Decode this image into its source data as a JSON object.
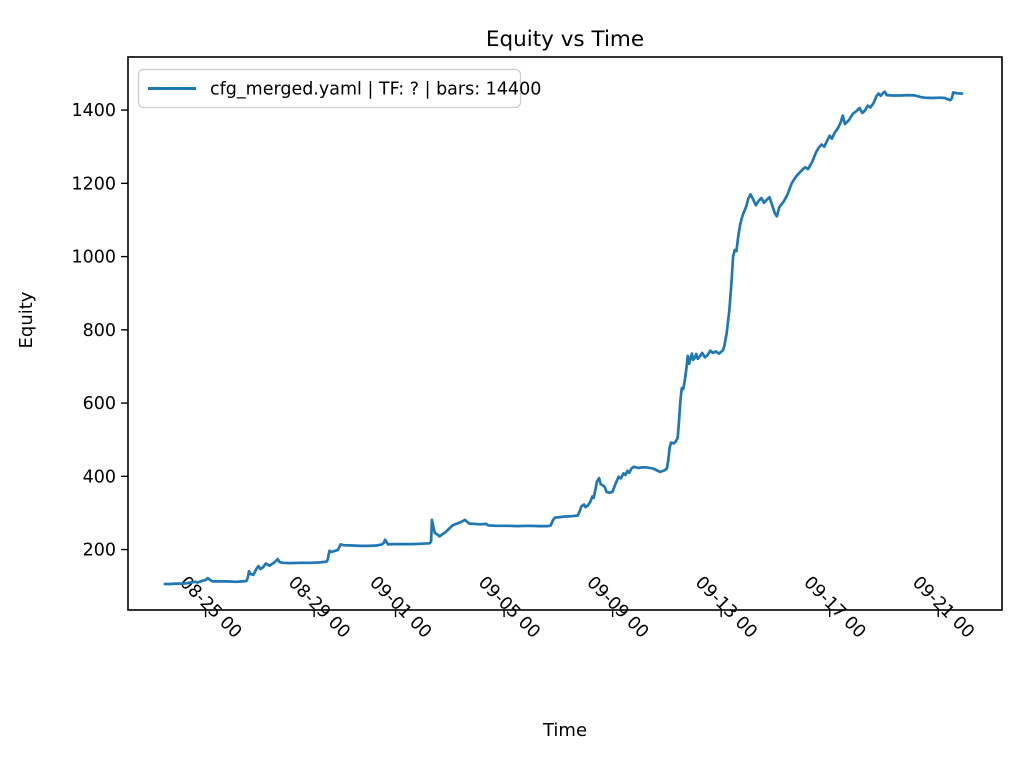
{
  "colors": {
    "line": "#1f77b4",
    "legend_border": "#cccccc",
    "axes": "#000000",
    "background": "#ffffff"
  },
  "chart_data": {
    "type": "line",
    "title": "Equity vs Time",
    "xlabel": "Time",
    "ylabel": "Equity",
    "grid": false,
    "legend": {
      "position": "upper left",
      "entries": [
        {
          "label": "cfg_merged.yaml | TF: ? | bars: 14400",
          "color": "#1f77b4"
        }
      ]
    },
    "y_ticks": [
      200,
      400,
      600,
      800,
      1000,
      1200,
      1400
    ],
    "ylim": [
      35,
      1545
    ],
    "x_range_days": [
      -0.86,
      31.35
    ],
    "x_axis_note": "days measured from 08-23 00:00",
    "x_ticks": [
      {
        "day": 2,
        "label": "08-25 00"
      },
      {
        "day": 6,
        "label": "08-29 00"
      },
      {
        "day": 9,
        "label": "09-01 00"
      },
      {
        "day": 13,
        "label": "09-05 00"
      },
      {
        "day": 17,
        "label": "09-09 00"
      },
      {
        "day": 21,
        "label": "09-13 00"
      },
      {
        "day": 25,
        "label": "09-17 00"
      },
      {
        "day": 29,
        "label": "09-21 00"
      }
    ],
    "series": [
      {
        "name": "cfg_merged.yaml | TF: ? | bars: 14400",
        "color": "#1f77b4",
        "points": [
          [
            0.5,
            106
          ],
          [
            0.7,
            106
          ],
          [
            0.9,
            107
          ],
          [
            1.1,
            107
          ],
          [
            1.3,
            108
          ],
          [
            1.5,
            111
          ],
          [
            1.62,
            112
          ],
          [
            1.7,
            110
          ],
          [
            1.85,
            114
          ],
          [
            2.0,
            117
          ],
          [
            2.08,
            122
          ],
          [
            2.15,
            118
          ],
          [
            2.25,
            113
          ],
          [
            2.5,
            113
          ],
          [
            2.8,
            113
          ],
          [
            3.1,
            112
          ],
          [
            3.35,
            113
          ],
          [
            3.5,
            114
          ],
          [
            3.55,
            122
          ],
          [
            3.6,
            141
          ],
          [
            3.66,
            133
          ],
          [
            3.76,
            131
          ],
          [
            3.88,
            148
          ],
          [
            3.95,
            155
          ],
          [
            4.02,
            147
          ],
          [
            4.12,
            152
          ],
          [
            4.22,
            162
          ],
          [
            4.35,
            156
          ],
          [
            4.5,
            163
          ],
          [
            4.6,
            170
          ],
          [
            4.66,
            174
          ],
          [
            4.72,
            166
          ],
          [
            4.85,
            164
          ],
          [
            5.1,
            163
          ],
          [
            5.5,
            164
          ],
          [
            5.9,
            164
          ],
          [
            6.2,
            165
          ],
          [
            6.45,
            167
          ],
          [
            6.5,
            172
          ],
          [
            6.53,
            185
          ],
          [
            6.57,
            197
          ],
          [
            6.62,
            193
          ],
          [
            6.75,
            196
          ],
          [
            6.88,
            199
          ],
          [
            6.93,
            207
          ],
          [
            6.97,
            214
          ],
          [
            7.1,
            212
          ],
          [
            7.4,
            211
          ],
          [
            7.7,
            210
          ],
          [
            8.0,
            210
          ],
          [
            8.3,
            211
          ],
          [
            8.5,
            214
          ],
          [
            8.57,
            219
          ],
          [
            8.61,
            227
          ],
          [
            8.66,
            222
          ],
          [
            8.72,
            214
          ],
          [
            8.9,
            215
          ],
          [
            9.2,
            215
          ],
          [
            9.6,
            215
          ],
          [
            10.0,
            216
          ],
          [
            10.25,
            217
          ],
          [
            10.31,
            222
          ],
          [
            10.34,
            281
          ],
          [
            10.4,
            260
          ],
          [
            10.45,
            245
          ],
          [
            10.55,
            241
          ],
          [
            10.62,
            236
          ],
          [
            10.85,
            248
          ],
          [
            11.0,
            259
          ],
          [
            11.1,
            266
          ],
          [
            11.2,
            269
          ],
          [
            11.35,
            273
          ],
          [
            11.56,
            281
          ],
          [
            11.63,
            276
          ],
          [
            11.72,
            271
          ],
          [
            11.9,
            270
          ],
          [
            12.1,
            269
          ],
          [
            12.35,
            270
          ],
          [
            12.42,
            266
          ],
          [
            12.7,
            265
          ],
          [
            13.1,
            265
          ],
          [
            13.5,
            264
          ],
          [
            13.9,
            265
          ],
          [
            14.3,
            264
          ],
          [
            14.62,
            264
          ],
          [
            14.72,
            266
          ],
          [
            14.8,
            280
          ],
          [
            14.87,
            287
          ],
          [
            15.0,
            288
          ],
          [
            15.2,
            290
          ],
          [
            15.5,
            291
          ],
          [
            15.72,
            293
          ],
          [
            15.8,
            308
          ],
          [
            15.85,
            318
          ],
          [
            15.95,
            323
          ],
          [
            16.0,
            316
          ],
          [
            16.08,
            320
          ],
          [
            16.18,
            331
          ],
          [
            16.25,
            345
          ],
          [
            16.3,
            341
          ],
          [
            16.36,
            362
          ],
          [
            16.42,
            385
          ],
          [
            16.5,
            395
          ],
          [
            16.56,
            379
          ],
          [
            16.7,
            372
          ],
          [
            16.78,
            357
          ],
          [
            16.9,
            355
          ],
          [
            17.0,
            358
          ],
          [
            17.1,
            378
          ],
          [
            17.22,
            399
          ],
          [
            17.3,
            394
          ],
          [
            17.4,
            408
          ],
          [
            17.48,
            404
          ],
          [
            17.55,
            415
          ],
          [
            17.62,
            410
          ],
          [
            17.7,
            422
          ],
          [
            17.78,
            426
          ],
          [
            17.95,
            423
          ],
          [
            18.2,
            425
          ],
          [
            18.5,
            421
          ],
          [
            18.75,
            412
          ],
          [
            18.9,
            416
          ],
          [
            19.0,
            421
          ],
          [
            19.05,
            442
          ],
          [
            19.1,
            478
          ],
          [
            19.15,
            492
          ],
          [
            19.25,
            490
          ],
          [
            19.33,
            495
          ],
          [
            19.4,
            505
          ],
          [
            19.45,
            555
          ],
          [
            19.5,
            610
          ],
          [
            19.55,
            641
          ],
          [
            19.6,
            638
          ],
          [
            19.66,
            662
          ],
          [
            19.72,
            695
          ],
          [
            19.77,
            729
          ],
          [
            19.82,
            707
          ],
          [
            19.87,
            722
          ],
          [
            19.92,
            735
          ],
          [
            19.97,
            718
          ],
          [
            20.03,
            724
          ],
          [
            20.08,
            734
          ],
          [
            20.14,
            721
          ],
          [
            20.22,
            728
          ],
          [
            20.3,
            737
          ],
          [
            20.4,
            725
          ],
          [
            20.5,
            731
          ],
          [
            20.6,
            743
          ],
          [
            20.7,
            737
          ],
          [
            20.8,
            741
          ],
          [
            20.92,
            735
          ],
          [
            21.0,
            740
          ],
          [
            21.07,
            745
          ],
          [
            21.12,
            757
          ],
          [
            21.2,
            790
          ],
          [
            21.3,
            852
          ],
          [
            21.38,
            930
          ],
          [
            21.44,
            1000
          ],
          [
            21.5,
            1018
          ],
          [
            21.56,
            1015
          ],
          [
            21.64,
            1060
          ],
          [
            21.7,
            1088
          ],
          [
            21.76,
            1105
          ],
          [
            21.83,
            1120
          ],
          [
            21.92,
            1136
          ],
          [
            22.0,
            1158
          ],
          [
            22.08,
            1170
          ],
          [
            22.18,
            1156
          ],
          [
            22.28,
            1140
          ],
          [
            22.38,
            1152
          ],
          [
            22.48,
            1160
          ],
          [
            22.58,
            1147
          ],
          [
            22.68,
            1155
          ],
          [
            22.78,
            1162
          ],
          [
            22.88,
            1140
          ],
          [
            22.98,
            1118
          ],
          [
            23.05,
            1110
          ],
          [
            23.15,
            1136
          ],
          [
            23.3,
            1150
          ],
          [
            23.45,
            1170
          ],
          [
            23.6,
            1200
          ],
          [
            23.75,
            1218
          ],
          [
            23.9,
            1230
          ],
          [
            24.0,
            1238
          ],
          [
            24.1,
            1244
          ],
          [
            24.2,
            1239
          ],
          [
            24.35,
            1258
          ],
          [
            24.5,
            1285
          ],
          [
            24.6,
            1298
          ],
          [
            24.7,
            1306
          ],
          [
            24.8,
            1300
          ],
          [
            24.9,
            1316
          ],
          [
            25.0,
            1330
          ],
          [
            25.08,
            1322
          ],
          [
            25.18,
            1338
          ],
          [
            25.3,
            1350
          ],
          [
            25.4,
            1366
          ],
          [
            25.48,
            1385
          ],
          [
            25.56,
            1362
          ],
          [
            25.7,
            1372
          ],
          [
            25.85,
            1390
          ],
          [
            26.0,
            1398
          ],
          [
            26.1,
            1406
          ],
          [
            26.2,
            1392
          ],
          [
            26.3,
            1399
          ],
          [
            26.4,
            1412
          ],
          [
            26.5,
            1407
          ],
          [
            26.62,
            1420
          ],
          [
            26.72,
            1438
          ],
          [
            26.8,
            1445
          ],
          [
            26.88,
            1439
          ],
          [
            26.97,
            1447
          ],
          [
            27.03,
            1450
          ],
          [
            27.1,
            1441
          ],
          [
            27.3,
            1440
          ],
          [
            27.6,
            1440
          ],
          [
            27.9,
            1441
          ],
          [
            28.15,
            1440
          ],
          [
            28.33,
            1436
          ],
          [
            28.5,
            1434
          ],
          [
            28.8,
            1433
          ],
          [
            29.05,
            1434
          ],
          [
            29.25,
            1433
          ],
          [
            29.44,
            1427
          ],
          [
            29.5,
            1432
          ],
          [
            29.55,
            1448
          ],
          [
            29.7,
            1446
          ],
          [
            29.88,
            1445
          ]
        ]
      }
    ]
  }
}
